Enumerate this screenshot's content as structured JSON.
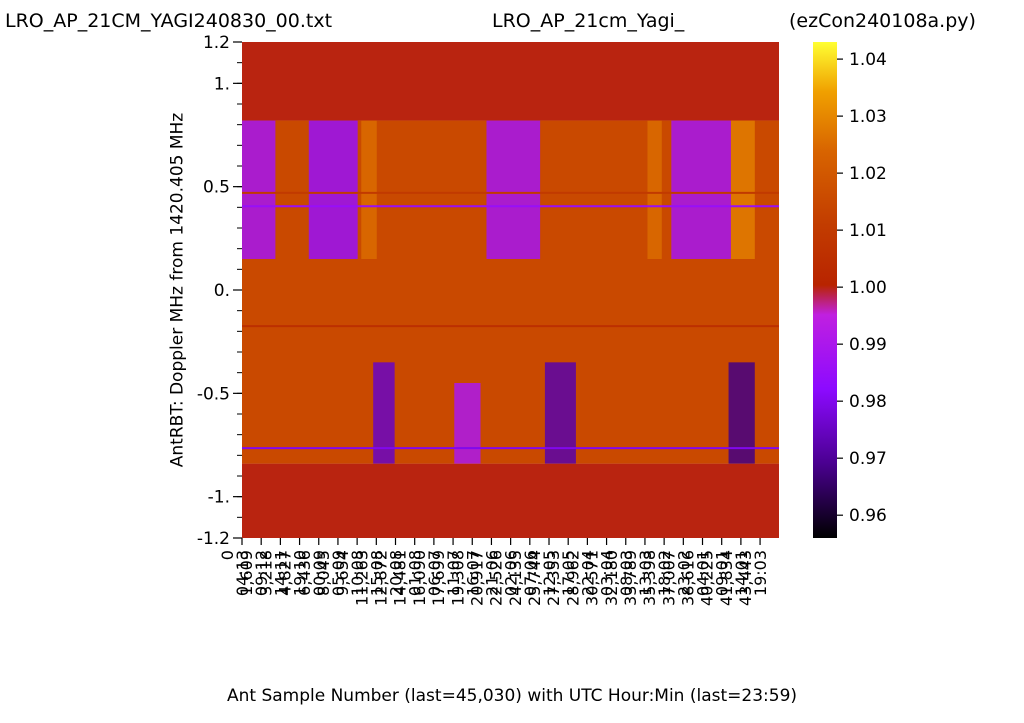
{
  "chart_data": {
    "type": "heatmap",
    "title_left": "LRO_AP_21CM_YAGI240830_00.txt",
    "title_center": "LRO_AP_21cm_Yagi_",
    "title_right": "(ezCon240108a.py)",
    "ylabel": "AntRBT:  Doppler MHz from 1420.405 MHz",
    "xlabel": "Ant Sample Number (last=45,030) with UTC Hour:Min (last=23:59)",
    "ylim": [
      -1.2,
      1.2
    ],
    "ytick_values": [
      1.2,
      1.0,
      0.5,
      0.0,
      -0.5,
      -1.0,
      -1.2
    ],
    "ytick_labels": [
      "1.2",
      "1.",
      "0.5",
      "0.",
      "-0.5",
      "-1.",
      "-1.2"
    ],
    "xlim": [
      0,
      45030
    ],
    "xtick_samples": [
      "0",
      "1,609",
      "3,218",
      "4,827",
      "6,436",
      "8,045",
      "9,654",
      "11,263",
      "12,872",
      "14,481",
      "16,090",
      "17,699",
      "19,308",
      "20,917",
      "22,526",
      "24,135",
      "25,744",
      "27,353",
      "28,962",
      "30,571",
      "32,180",
      "33,789",
      "35,398",
      "37,007",
      "38,616",
      "40,225",
      "41,834",
      "43,443"
    ],
    "xtick_times": [
      "04:13",
      "09:12",
      "14:11",
      "19:10",
      "00:09",
      "05:09",
      "10:08",
      "15:08",
      "20:08",
      "01:08",
      "06:07",
      "11:07",
      "16:07",
      "21:06",
      "02:06",
      "07:06",
      "12:05",
      "17:05",
      "22:04",
      "03:04",
      "08:03",
      "13:03",
      "18:02",
      "23:02",
      "04:01",
      "09:01",
      "14:01",
      "19:03"
    ],
    "colorbar": {
      "min": 0.956,
      "max": 1.043,
      "tick_values": [
        0.96,
        0.97,
        0.98,
        0.99,
        1.0,
        1.01,
        1.02,
        1.03,
        1.04
      ],
      "tick_labels": [
        "0.96",
        "0.97",
        "0.98",
        "0.99",
        "1.00",
        "1.01",
        "1.02",
        "1.03",
        "1.04"
      ],
      "colors": [
        "#000000",
        "#5a00a0",
        "#8c0aff",
        "#c020e0",
        "#b82400",
        "#c23c00",
        "#d86400",
        "#f0a000",
        "#ffff33"
      ]
    },
    "data_band_mhz": [
      -0.84,
      0.82
    ],
    "fill_value": 1.0,
    "background_value": 1.015,
    "low_power_regions": [
      {
        "x": [
          0,
          2800
        ],
        "mhz": [
          0.15,
          0.82
        ],
        "value": 0.988
      },
      {
        "x": [
          5600,
          9700
        ],
        "mhz": [
          0.15,
          0.82
        ],
        "value": 0.985
      },
      {
        "x": [
          20500,
          25000
        ],
        "mhz": [
          0.15,
          0.82
        ],
        "value": 0.988
      },
      {
        "x": [
          36000,
          41000
        ],
        "mhz": [
          0.15,
          0.82
        ],
        "value": 0.988
      },
      {
        "x": [
          11000,
          12800
        ],
        "mhz": [
          -0.84,
          -0.35
        ],
        "value": 0.975
      },
      {
        "x": [
          25400,
          28000
        ],
        "mhz": [
          -0.84,
          -0.35
        ],
        "value": 0.972
      },
      {
        "x": [
          40800,
          43000
        ],
        "mhz": [
          -0.84,
          -0.35
        ],
        "value": 0.968
      },
      {
        "x": [
          17800,
          20000
        ],
        "mhz": [
          -0.84,
          -0.45
        ],
        "value": 0.99
      }
    ],
    "bright_regions": [
      {
        "x": [
          10000,
          11300
        ],
        "mhz": [
          0.15,
          0.82
        ],
        "value": 1.025
      },
      {
        "x": [
          34000,
          35200
        ],
        "mhz": [
          0.15,
          0.82
        ],
        "value": 1.025
      },
      {
        "x": [
          41000,
          43000
        ],
        "mhz": [
          0.15,
          0.82
        ],
        "value": 1.028
      }
    ],
    "horizontal_lines": [
      {
        "mhz": 0.405,
        "value": 0.985
      },
      {
        "mhz": -0.765,
        "value": 0.98
      },
      {
        "mhz": -0.175,
        "value": 1.005
      },
      {
        "mhz": 0.47,
        "value": 1.01
      }
    ]
  }
}
